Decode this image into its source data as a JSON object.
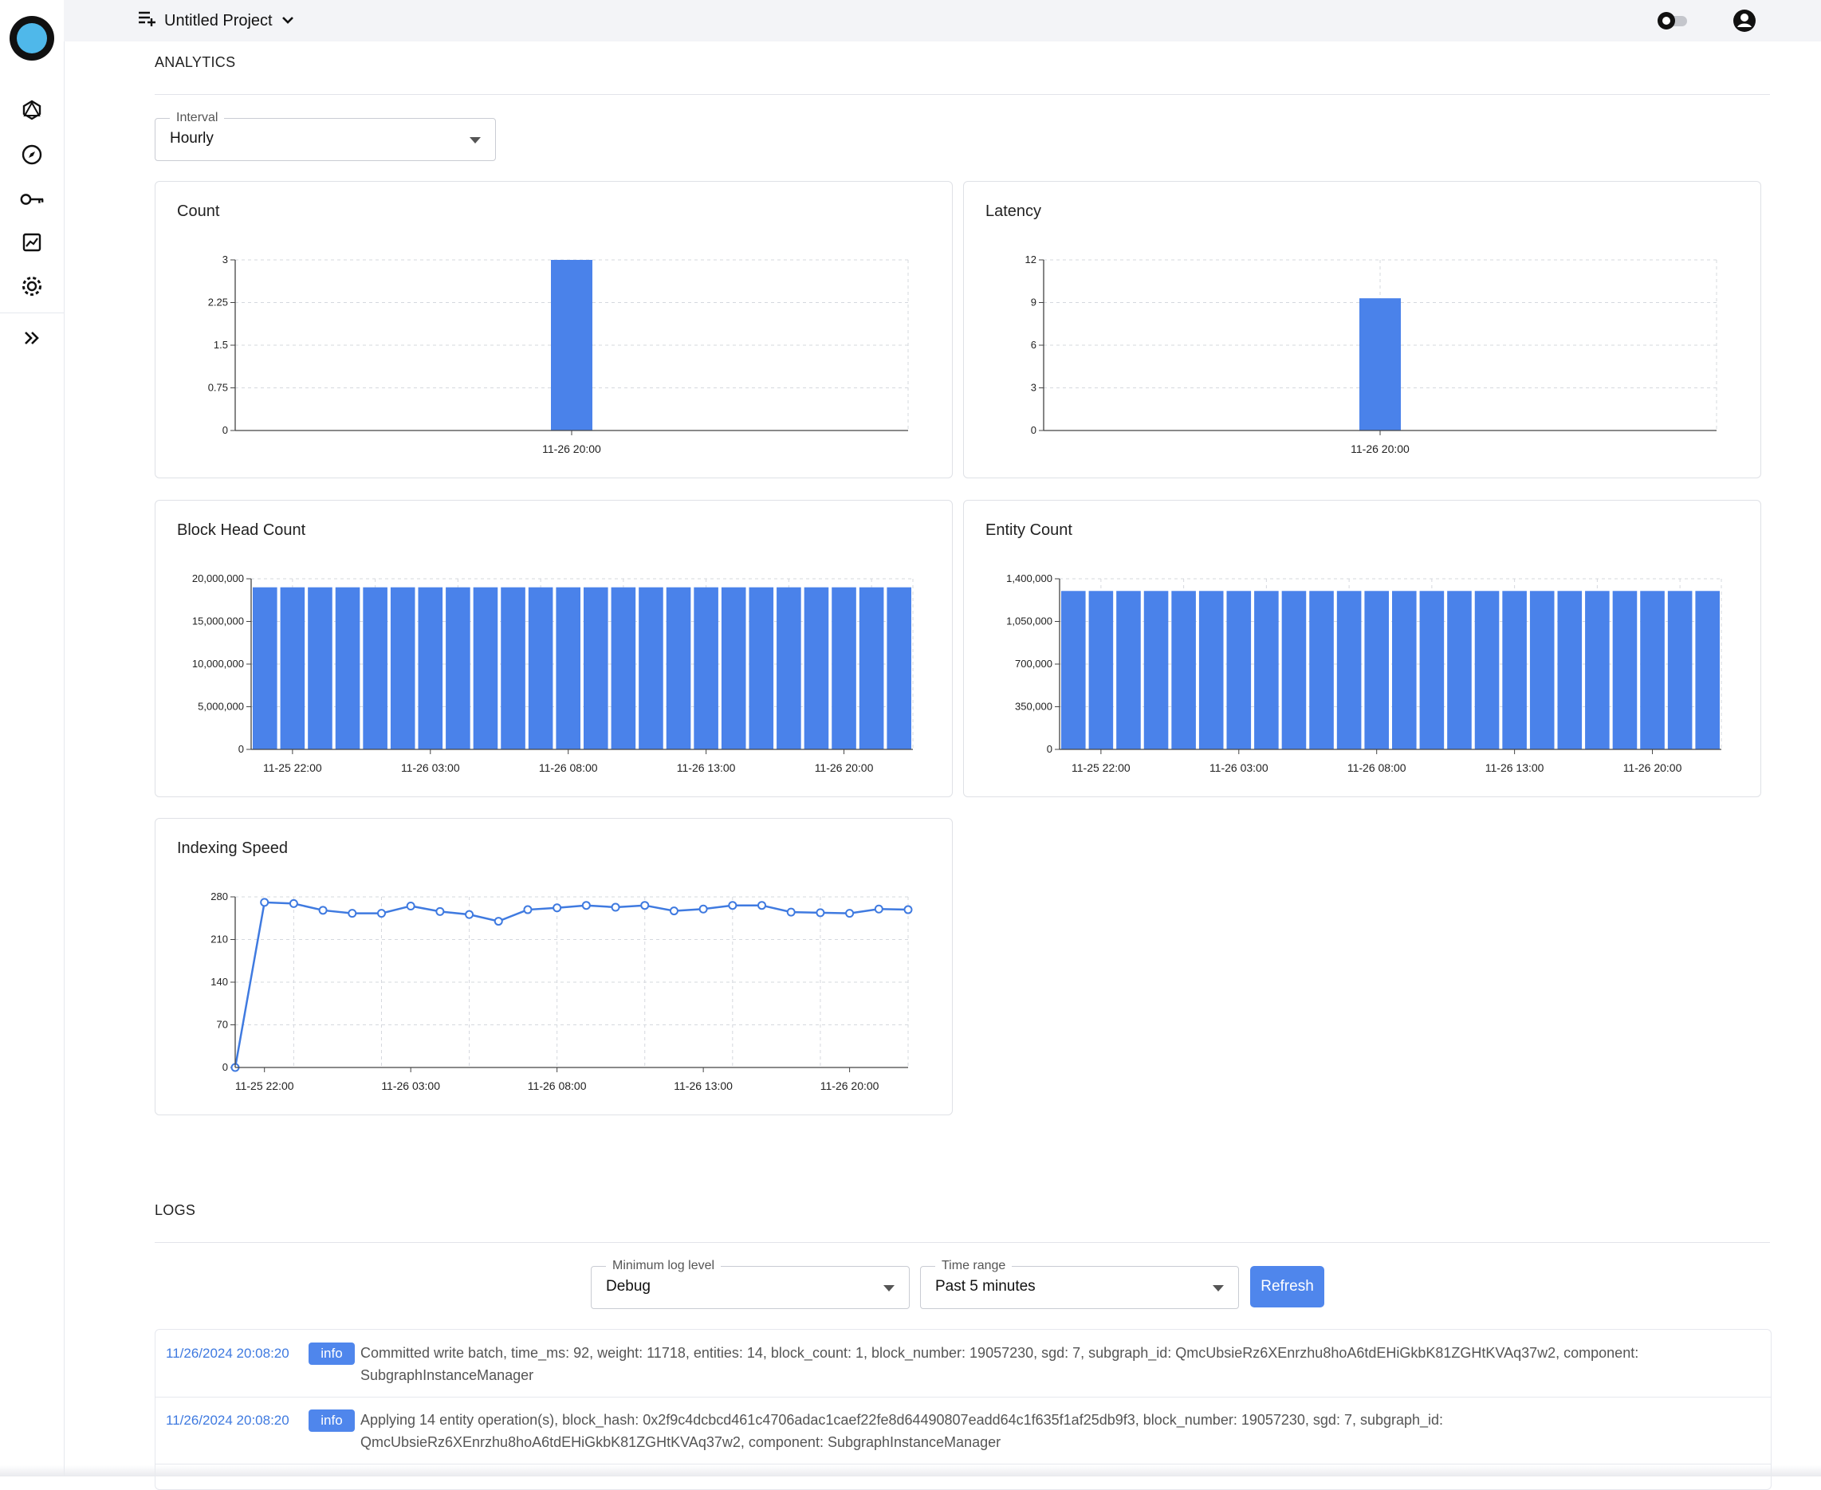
{
  "header": {
    "project_name": "Untitled Project"
  },
  "sidebar": {
    "items": [
      {
        "name": "graphql-icon"
      },
      {
        "name": "compass-icon"
      },
      {
        "name": "key-icon"
      },
      {
        "name": "analytics-icon"
      },
      {
        "name": "gear-icon"
      },
      {
        "name": "expand-icon"
      }
    ]
  },
  "analytics": {
    "title": "ANALYTICS",
    "interval_label": "Interval",
    "interval_value": "Hourly"
  },
  "charts": {
    "count": {
      "title": "Count"
    },
    "latency": {
      "title": "Latency"
    },
    "block_head": {
      "title": "Block Head Count"
    },
    "entity": {
      "title": "Entity Count"
    },
    "indexing": {
      "title": "Indexing Speed"
    }
  },
  "chart_data": [
    {
      "id": "count",
      "type": "bar",
      "categories": [
        "11-26 20:00"
      ],
      "values": [
        3
      ],
      "ylim": [
        0,
        3
      ],
      "yticks": [
        "0",
        "0.75",
        "1.5",
        "2.25",
        "3"
      ],
      "grid": true
    },
    {
      "id": "latency",
      "type": "bar",
      "categories": [
        "11-26 20:00"
      ],
      "values": [
        9.3
      ],
      "ylim": [
        0,
        12
      ],
      "yticks": [
        "0",
        "3",
        "6",
        "9",
        "12"
      ],
      "grid": true
    },
    {
      "id": "block_head",
      "type": "bar",
      "x_tick_labels": [
        "11-25 22:00",
        "11-26 03:00",
        "11-26 08:00",
        "11-26 13:00",
        "11-26 20:00"
      ],
      "values": [
        19000000,
        19000000,
        19000000,
        19000000,
        19000000,
        19000000,
        19000000,
        19000000,
        19000000,
        19000000,
        19000000,
        19000000,
        19000000,
        19000000,
        19000000,
        19000000,
        19000000,
        19000000,
        19000000,
        19000000,
        19000000,
        19000000,
        19000000,
        19000000
      ],
      "ylim": [
        0,
        20000000
      ],
      "yticks": [
        "0",
        "5,000,000",
        "10,000,000",
        "15,000,000",
        "20,000,000"
      ],
      "grid": true
    },
    {
      "id": "entity",
      "type": "bar",
      "x_tick_labels": [
        "11-25 22:00",
        "11-26 03:00",
        "11-26 08:00",
        "11-26 13:00",
        "11-26 20:00"
      ],
      "values": [
        1300000,
        1300000,
        1300000,
        1300000,
        1300000,
        1300000,
        1300000,
        1300000,
        1300000,
        1300000,
        1300000,
        1300000,
        1300000,
        1300000,
        1300000,
        1300000,
        1300000,
        1300000,
        1300000,
        1300000,
        1300000,
        1300000,
        1300000,
        1300000
      ],
      "ylim": [
        0,
        1400000
      ],
      "yticks": [
        "0",
        "350,000",
        "700,000",
        "1,050,000",
        "1,400,000"
      ],
      "grid": true
    },
    {
      "id": "indexing",
      "type": "line",
      "x_tick_labels": [
        "11-25 22:00",
        "11-26 03:00",
        "11-26 08:00",
        "11-26 13:00",
        "11-26 20:00"
      ],
      "values": [
        0,
        271,
        269,
        258,
        253,
        253,
        265,
        256,
        251,
        240,
        259,
        262,
        266,
        263,
        266,
        257,
        260,
        266,
        266,
        255,
        254,
        253,
        260,
        259
      ],
      "ylim": [
        0,
        280
      ],
      "yticks": [
        "0",
        "70",
        "140",
        "210",
        "280"
      ],
      "grid": true
    }
  ],
  "logs": {
    "title": "LOGS",
    "level_label": "Minimum log level",
    "level_value": "Debug",
    "range_label": "Time range",
    "range_value": "Past 5 minutes",
    "refresh_label": "Refresh",
    "entries": [
      {
        "time": "11/26/2024 20:08:20",
        "level": "info",
        "message": "Committed write batch, time_ms: 92, weight: 11718, entities: 14, block_count: 1, block_number: 19057230, sgd: 7, subgraph_id: QmcUbsieRz6XEnrzhu8hoA6tdEHiGkbK81ZGHtKVAq37w2, component: SubgraphInstanceManager"
      },
      {
        "time": "11/26/2024 20:08:20",
        "level": "info",
        "message": "Applying 14 entity operation(s), block_hash: 0x2f9c4dcbcd461c4706adac1caef22fe8d64490807eadd64c1f635f1af25db9f3, block_number: 19057230, sgd: 7, subgraph_id: QmcUbsieRz6XEnrzhu8hoA6tdEHiGkbK81ZGHtKVAq37w2, component: SubgraphInstanceManager"
      }
    ]
  },
  "colors": {
    "accent": "#4f86ec",
    "bar": "#4a82ea",
    "line": "#3f7ae0",
    "grid": "#d5d8de"
  }
}
